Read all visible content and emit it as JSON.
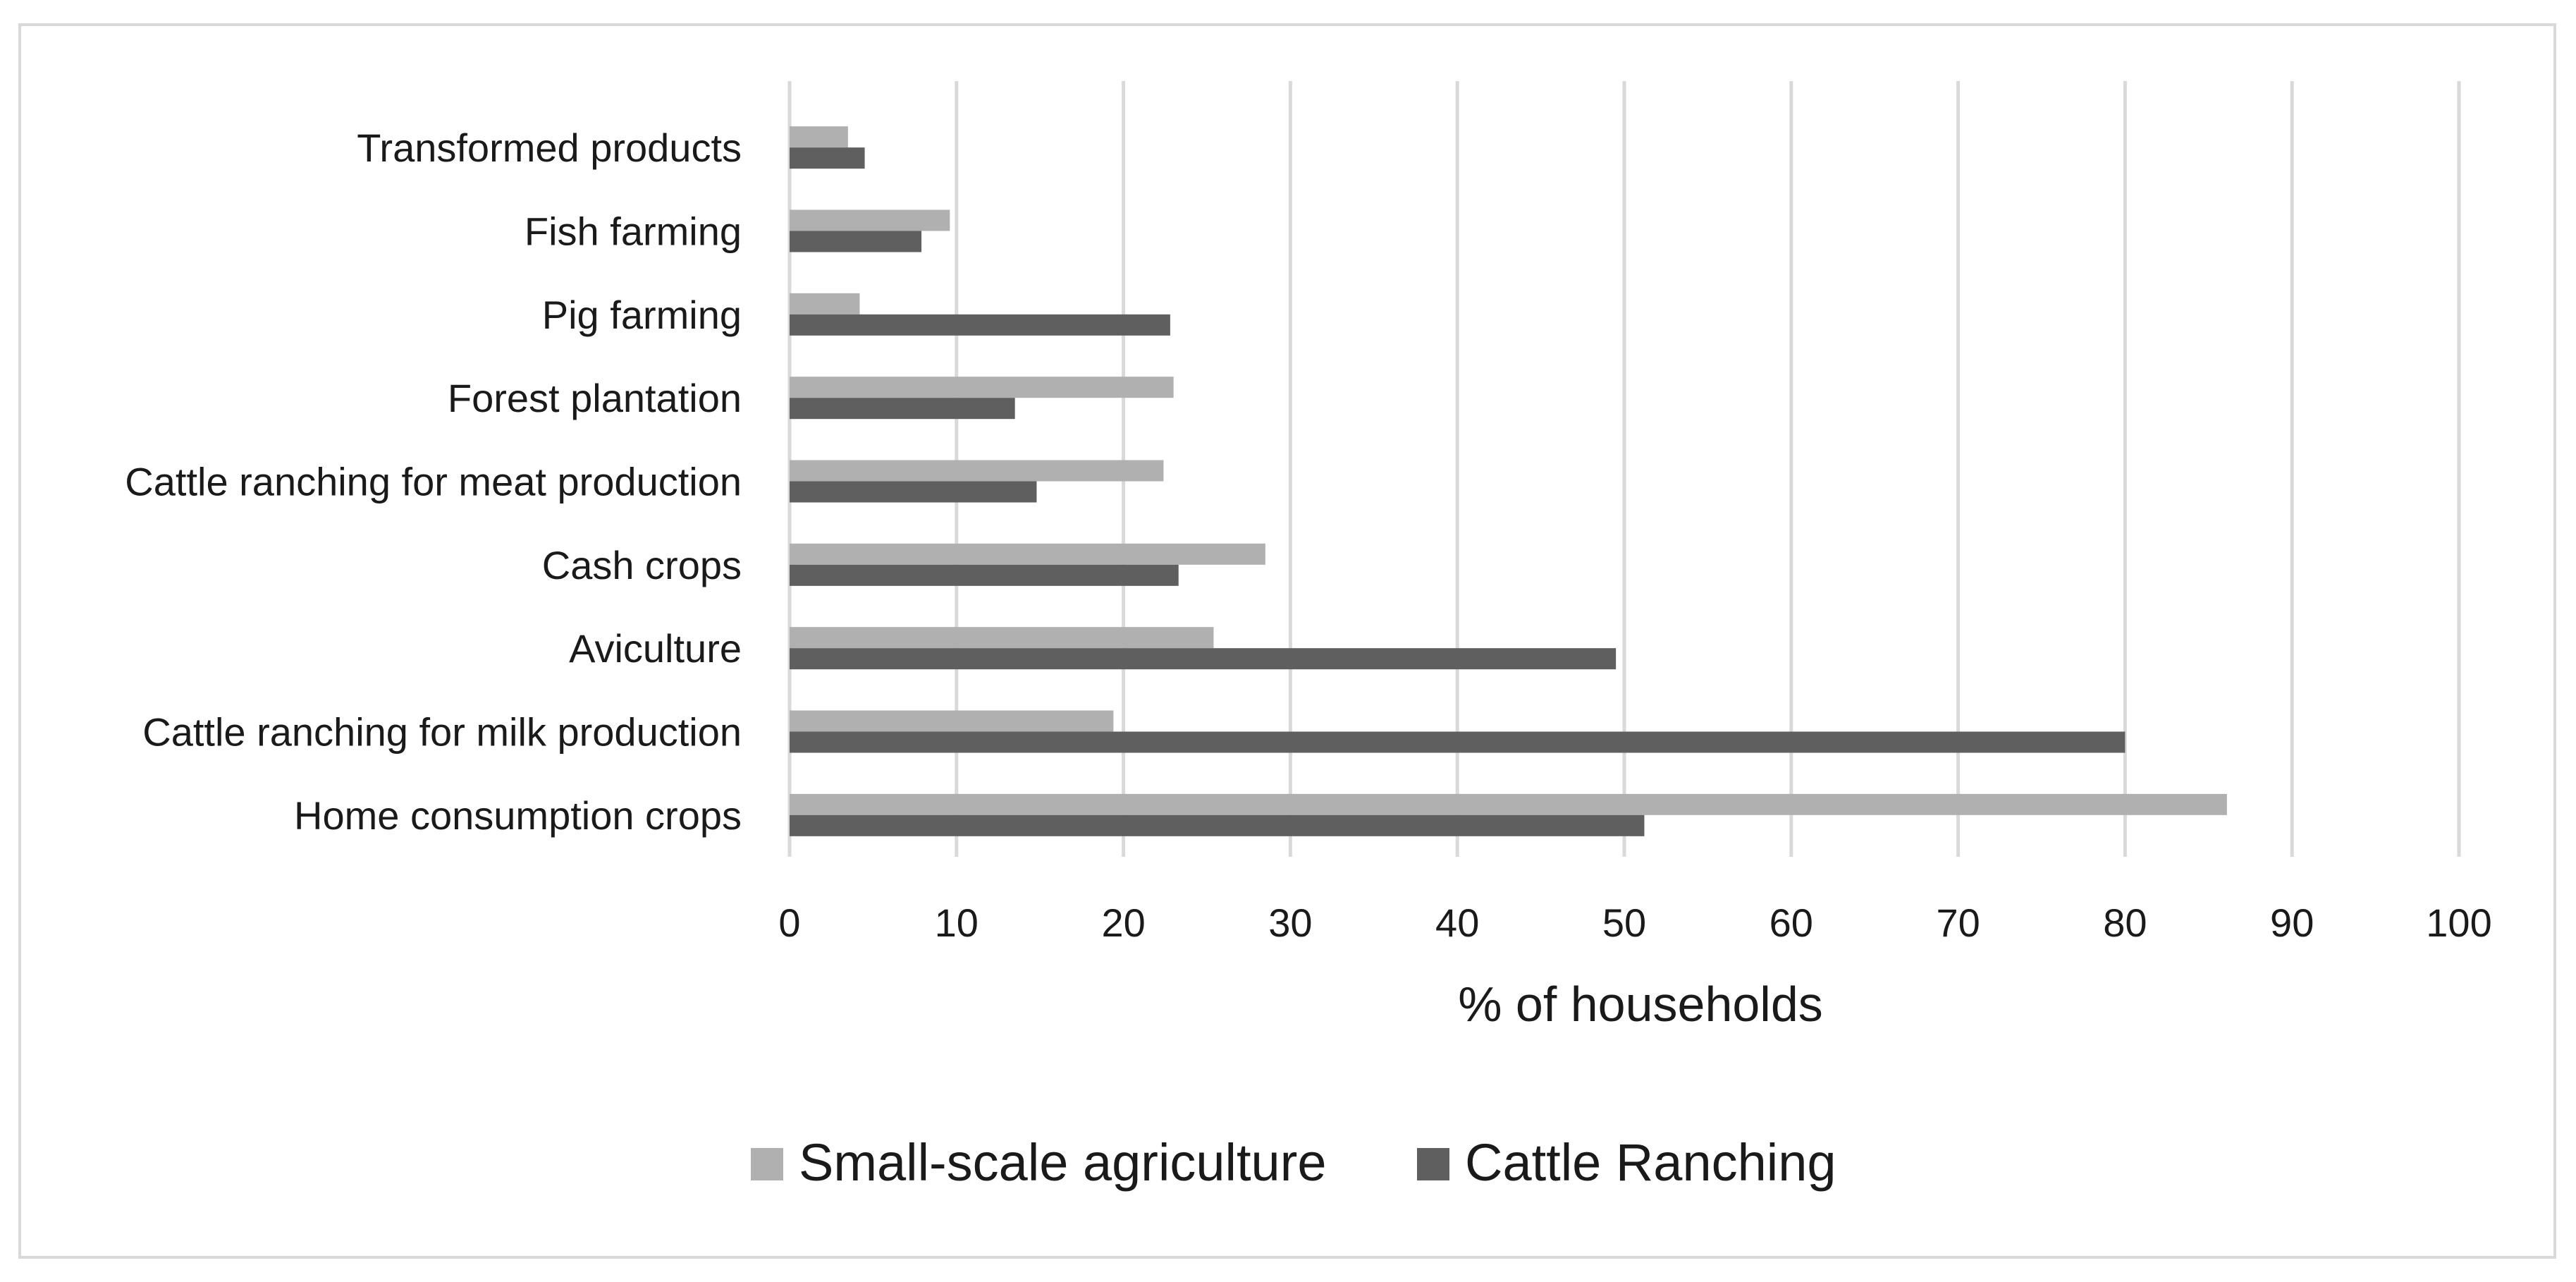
{
  "chart_data": {
    "type": "bar",
    "orientation": "horizontal",
    "title": "",
    "xlabel": "% of households",
    "ylabel": "",
    "xlim": [
      0,
      100
    ],
    "x_ticks": [
      "0",
      "10",
      "20",
      "30",
      "40",
      "50",
      "60",
      "70",
      "80",
      "90",
      "100"
    ],
    "grid": true,
    "legend_position": "bottom",
    "categories": [
      "Transformed products",
      "Fish farming",
      "Pig farming",
      "Forest plantation",
      "Cattle ranching for meat production",
      "Cash crops",
      "Aviculture",
      "Cattle ranching for milk production",
      "Home consumption crops"
    ],
    "series": [
      {
        "name": "Small-scale agriculture",
        "color": "#b0b0b0",
        "values": [
          3.5,
          9.6,
          4.2,
          23.0,
          22.4,
          28.5,
          25.4,
          19.4,
          86.1
        ]
      },
      {
        "name": "Cattle Ranching",
        "color": "#5f5f5f",
        "values": [
          4.5,
          7.9,
          22.8,
          13.5,
          14.8,
          23.3,
          49.5,
          80.0,
          51.2
        ]
      }
    ]
  }
}
